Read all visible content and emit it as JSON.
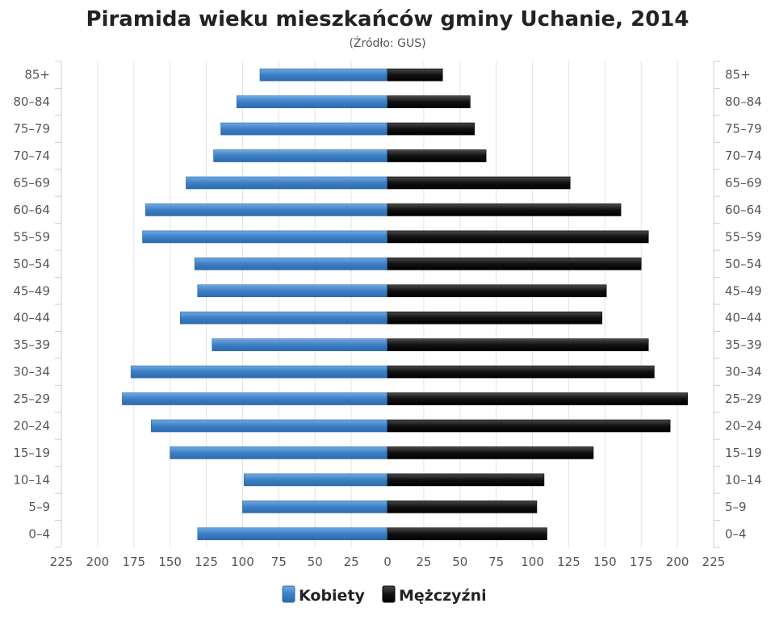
{
  "chart_data": {
    "type": "bar",
    "orientation": "horizontal",
    "title": "Piramida wieku mieszkańców gminy Uchanie, 2014",
    "subtitle": "(Źródło: GUS)",
    "categories": [
      "0-4",
      "5-9",
      "10-14",
      "15-19",
      "20-24",
      "25-29",
      "30-34",
      "35-39",
      "40-44",
      "45-49",
      "50-54",
      "55-59",
      "60-64",
      "65-69",
      "70-74",
      "75-79",
      "80-84",
      "85+"
    ],
    "series": [
      {
        "name": "Kobiety",
        "side": "left",
        "color": "#4a8cd0",
        "values": [
          131,
          100,
          99,
          150,
          163,
          183,
          177,
          121,
          143,
          131,
          133,
          169,
          167,
          139,
          120,
          115,
          104,
          88
        ]
      },
      {
        "name": "Mężczyźni",
        "side": "right",
        "color": "#1a1a1a",
        "values": [
          110,
          103,
          108,
          142,
          195,
          207,
          184,
          180,
          148,
          151,
          175,
          180,
          161,
          126,
          68,
          60,
          57,
          38
        ]
      }
    ],
    "xlim": [
      -225,
      225
    ],
    "xticks": [
      -225,
      -200,
      -175,
      -150,
      -125,
      -100,
      -75,
      -50,
      -25,
      0,
      25,
      50,
      75,
      100,
      125,
      150,
      175,
      200,
      225
    ],
    "xtick_labels": [
      "225",
      "200",
      "175",
      "150",
      "125",
      "100",
      "75",
      "50",
      "25",
      "0",
      "25",
      "50",
      "75",
      "100",
      "125",
      "150",
      "175",
      "200",
      "225"
    ],
    "grid": true,
    "legend_position": "bottom-center"
  }
}
